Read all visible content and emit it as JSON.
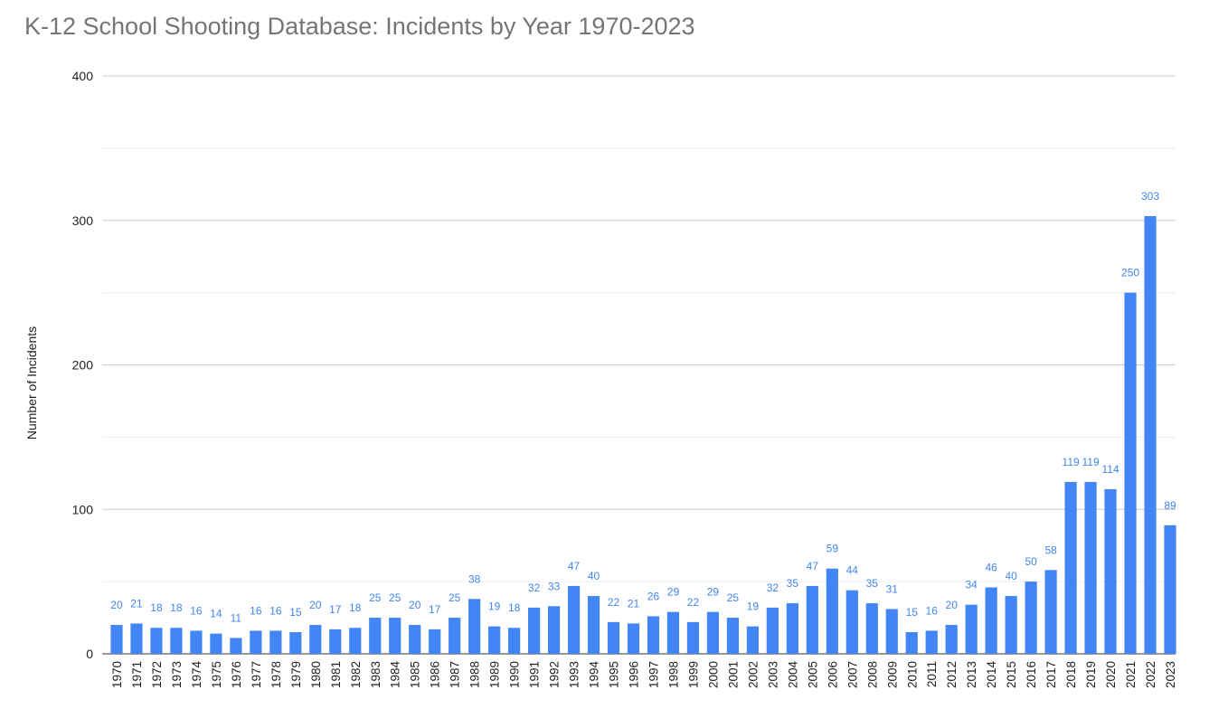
{
  "chart_data": {
    "type": "bar",
    "title": "K-12 School Shooting Database: Incidents by Year 1970-2023",
    "xlabel": "",
    "ylabel": "Number of Incidents",
    "ylim": [
      0,
      400
    ],
    "y_ticks": [
      0,
      100,
      200,
      300,
      400
    ],
    "minor_gridlines": true,
    "legend": "none",
    "bar_color": "#4285f4",
    "label_color": "#4285f4",
    "categories": [
      "1970",
      "1971",
      "1972",
      "1973",
      "1974",
      "1975",
      "1976",
      "1977",
      "1978",
      "1979",
      "1980",
      "1981",
      "1982",
      "1983",
      "1984",
      "1985",
      "1986",
      "1987",
      "1988",
      "1989",
      "1990",
      "1991",
      "1992",
      "1993",
      "1994",
      "1995",
      "1996",
      "1997",
      "1998",
      "1999",
      "2000",
      "2001",
      "2002",
      "2003",
      "2004",
      "2005",
      "2006",
      "2007",
      "2008",
      "2009",
      "2010",
      "2011",
      "2012",
      "2013",
      "2014",
      "2015",
      "2016",
      "2017",
      "2018",
      "2019",
      "2020",
      "2021",
      "2022",
      "2023"
    ],
    "values": [
      20,
      21,
      18,
      18,
      16,
      14,
      11,
      16,
      16,
      15,
      20,
      17,
      18,
      25,
      25,
      20,
      17,
      25,
      38,
      19,
      18,
      32,
      33,
      47,
      40,
      22,
      21,
      26,
      29,
      22,
      29,
      25,
      19,
      32,
      35,
      47,
      59,
      44,
      35,
      31,
      15,
      16,
      20,
      34,
      46,
      40,
      50,
      58,
      119,
      119,
      114,
      250,
      303,
      89
    ]
  }
}
